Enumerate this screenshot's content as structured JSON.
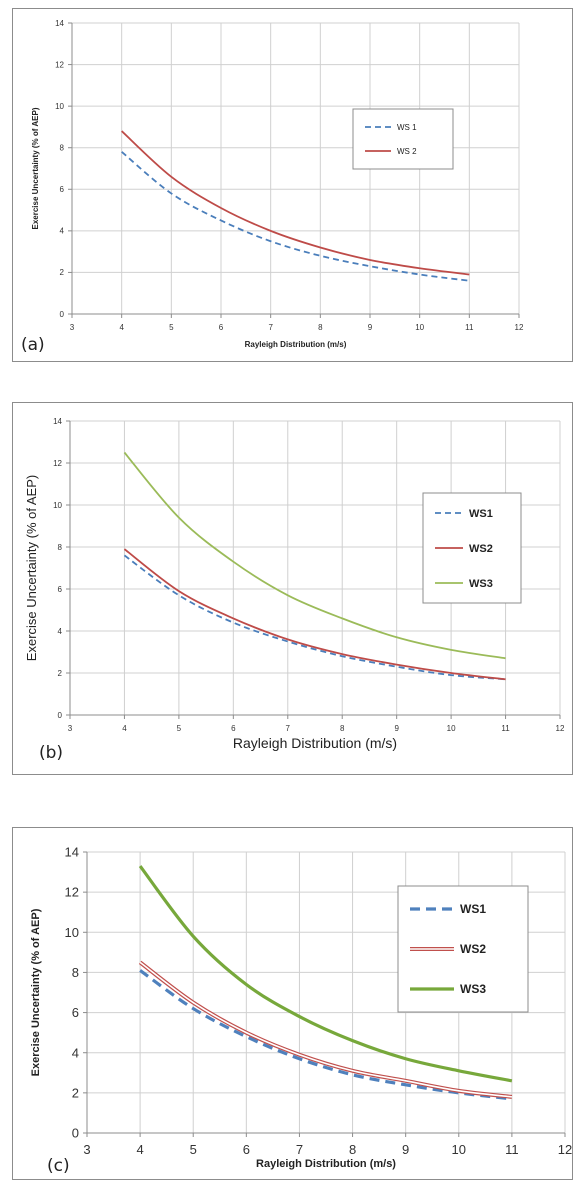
{
  "chart_data": [
    {
      "type": "line",
      "panel_label": "(a)",
      "xlabel": "Rayleigh Distribution (m/s)",
      "ylabel": "Exercise Uncertainty (% of AEP)",
      "xlim": [
        3,
        12
      ],
      "ylim": [
        0,
        14
      ],
      "xticks": [
        "3",
        "4",
        "5",
        "6",
        "7",
        "8",
        "9",
        "10",
        "11",
        "12"
      ],
      "yticks": [
        "0",
        "2",
        "4",
        "6",
        "8",
        "10",
        "12",
        "14"
      ],
      "grid": true,
      "legend_position": "right",
      "x": [
        4,
        5,
        6,
        7,
        8,
        9,
        10,
        11
      ],
      "series": [
        {
          "name": "WS 1",
          "color": "#4a7ebb",
          "style": "dashed",
          "values": [
            7.8,
            5.8,
            4.5,
            3.5,
            2.8,
            2.3,
            1.9,
            1.6
          ]
        },
        {
          "name": "WS 2",
          "color": "#be4b48",
          "style": "solid",
          "values": [
            8.8,
            6.6,
            5.1,
            4.0,
            3.2,
            2.6,
            2.2,
            1.9
          ]
        }
      ]
    },
    {
      "type": "line",
      "panel_label": "(b)",
      "xlabel": "Rayleigh Distribution (m/s)",
      "ylabel": "Exercise Uncertainty (% of AEP)",
      "xlim": [
        3,
        12
      ],
      "ylim": [
        0,
        14
      ],
      "xticks": [
        "3",
        "4",
        "5",
        "6",
        "7",
        "8",
        "9",
        "10",
        "11",
        "12"
      ],
      "yticks": [
        "0",
        "2",
        "4",
        "6",
        "8",
        "10",
        "12",
        "14"
      ],
      "grid": true,
      "legend_position": "right",
      "x": [
        4,
        5,
        6,
        7,
        8,
        9,
        10,
        11
      ],
      "series": [
        {
          "name": "WS1",
          "color": "#4a7ebb",
          "style": "dashed",
          "values": [
            7.6,
            5.7,
            4.4,
            3.5,
            2.8,
            2.3,
            1.9,
            1.7
          ]
        },
        {
          "name": "WS2",
          "color": "#be4b48",
          "style": "solid",
          "values": [
            7.9,
            5.9,
            4.6,
            3.6,
            2.9,
            2.4,
            2.0,
            1.7
          ]
        },
        {
          "name": "WS3",
          "color": "#9bbb59",
          "style": "solid",
          "values": [
            12.5,
            9.4,
            7.3,
            5.7,
            4.6,
            3.7,
            3.1,
            2.7
          ]
        }
      ]
    },
    {
      "type": "line",
      "panel_label": "(c)",
      "xlabel": "Rayleigh Distribution (m/s)",
      "ylabel": "Exercise Uncertainty (% of AEP)",
      "xlim": [
        3,
        12
      ],
      "ylim": [
        0,
        14
      ],
      "xticks": [
        "3",
        "4",
        "5",
        "6",
        "7",
        "8",
        "9",
        "10",
        "11",
        "12"
      ],
      "yticks": [
        "0",
        "2",
        "4",
        "6",
        "8",
        "10",
        "12",
        "14"
      ],
      "grid": true,
      "legend_position": "right",
      "x": [
        4,
        5,
        6,
        7,
        8,
        9,
        10,
        11
      ],
      "series": [
        {
          "name": "WS1",
          "color": "#4f81bd",
          "style": "dashed",
          "values": [
            8.1,
            6.2,
            4.8,
            3.7,
            2.9,
            2.4,
            2.0,
            1.7
          ]
        },
        {
          "name": "WS2",
          "color": "#c0504d",
          "style": "double",
          "values": [
            8.5,
            6.5,
            5.0,
            3.9,
            3.1,
            2.6,
            2.1,
            1.8
          ]
        },
        {
          "name": "WS3",
          "color": "#77a83b",
          "style": "solid",
          "values": [
            13.3,
            9.8,
            7.4,
            5.8,
            4.6,
            3.7,
            3.1,
            2.6
          ]
        }
      ]
    }
  ]
}
